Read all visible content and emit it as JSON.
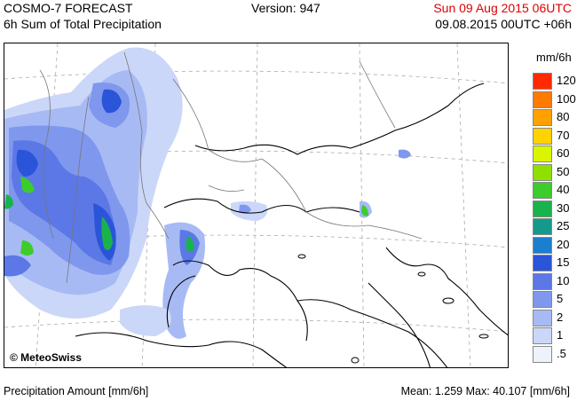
{
  "header": {
    "title": "COSMO-7 FORECAST",
    "subtitle": "6h Sum of Total Precipitation",
    "version": "Version: 947",
    "valid_time": "Sun 09 Aug 2015 06UTC",
    "run_time": "09.08.2015 00UTC +06h",
    "valid_time_color": "#e00000"
  },
  "map": {
    "copyright": "© MeteoSwiss"
  },
  "legend": {
    "unit": "mm/6h",
    "items": [
      {
        "label": "120",
        "color": "#ff2a00"
      },
      {
        "label": "100",
        "color": "#ff7a00"
      },
      {
        "label": "80",
        "color": "#ffa100"
      },
      {
        "label": "70",
        "color": "#ffd200"
      },
      {
        "label": "60",
        "color": "#d9f500"
      },
      {
        "label": "50",
        "color": "#8fe000"
      },
      {
        "label": "40",
        "color": "#3ccc2b"
      },
      {
        "label": "30",
        "color": "#19b34d"
      },
      {
        "label": "25",
        "color": "#149a8a"
      },
      {
        "label": "20",
        "color": "#1b7fd0"
      },
      {
        "label": "15",
        "color": "#2b55d8"
      },
      {
        "label": "10",
        "color": "#5b78e6"
      },
      {
        "label": "5",
        "color": "#7f98ee"
      },
      {
        "label": "2",
        "color": "#a8baf4"
      },
      {
        "label": "1",
        "color": "#cbd7f8"
      },
      {
        "label": ".5",
        "color": "#eef2fd"
      }
    ]
  },
  "footer": {
    "left": "Precipitation Amount [mm/6h]",
    "right": "Mean:   1.259 Max:  40.107 [mm/6h]"
  }
}
